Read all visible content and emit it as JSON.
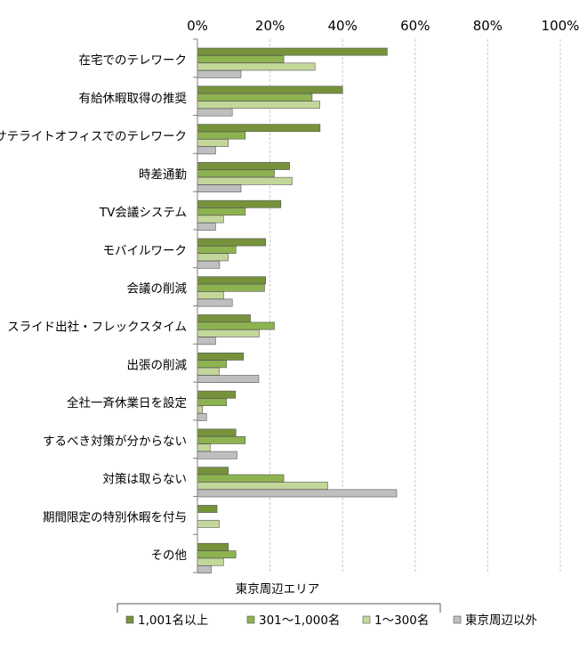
{
  "chart_data": {
    "type": "bar",
    "orientation": "horizontal",
    "categories": [
      "在宅でのテレワーク",
      "有給休暇取得の推奨",
      "サテライトオフィスでのテレワーク",
      "時差通勤",
      "TV会議システム",
      "モバイルワーク",
      "会議の削減",
      "スライド出社・フレックスタイム",
      "出張の削減",
      "全社一斉休業日を設定",
      "するべき対策が分からない",
      "対策は取らない",
      "期間限定の特別休暇を付与",
      "その他"
    ],
    "series": [
      {
        "name": "1,001名以上",
        "color": "#76933c",
        "values": [
          52.3,
          40.0,
          33.8,
          25.4,
          23.0,
          18.8,
          18.8,
          14.6,
          12.7,
          10.5,
          10.6,
          8.5,
          5.4,
          8.5
        ]
      },
      {
        "name": "301～1,000名",
        "color": "#8db350",
        "values": [
          23.8,
          31.6,
          13.2,
          21.2,
          13.2,
          10.6,
          18.5,
          21.2,
          8.0,
          8.0,
          13.2,
          23.8,
          0,
          10.6
        ]
      },
      {
        "name": "1～300名",
        "color": "#c4d79b",
        "values": [
          32.4,
          33.7,
          8.5,
          26.1,
          7.2,
          8.5,
          7.2,
          17.0,
          6.0,
          1.4,
          3.5,
          35.9,
          6.0,
          7.2
        ]
      },
      {
        "name": "東京周辺以外",
        "color": "#bfbfbf",
        "values": [
          12.0,
          9.6,
          5.0,
          12.0,
          5.0,
          6.1,
          9.6,
          5.0,
          16.9,
          2.5,
          10.9,
          54.9,
          0,
          3.8
        ]
      }
    ],
    "xlim": [
      0,
      100
    ],
    "xticks": [
      "0%",
      "20%",
      "40%",
      "60%",
      "80%",
      "100%"
    ],
    "grid": "vertical dashed",
    "legend": {
      "position": "bottom",
      "group_title": "東京周辺エリア",
      "grouped_series": [
        "1,001名以上",
        "301～1,000名",
        "1～300名"
      ]
    }
  }
}
